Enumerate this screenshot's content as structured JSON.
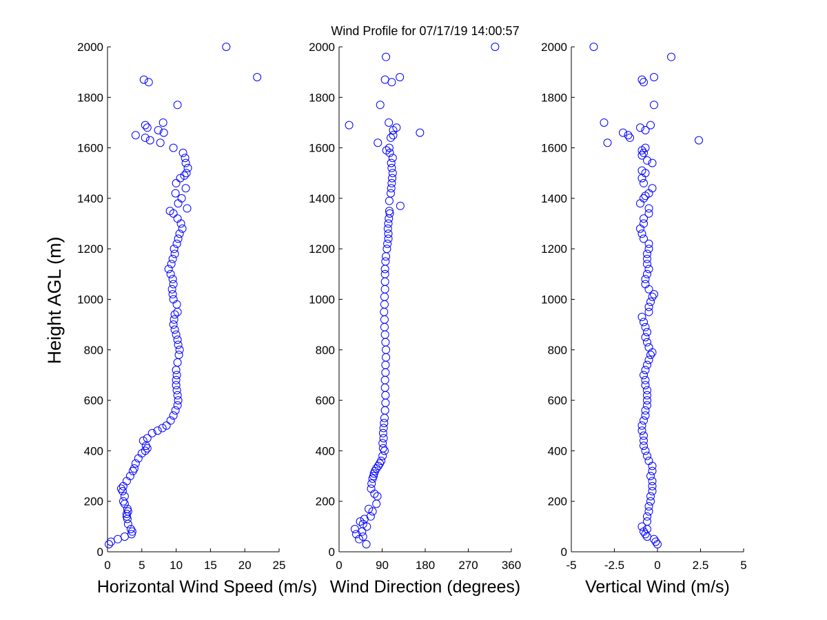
{
  "figure": {
    "title": "Wind Profile for  07/17/19 14:00:57",
    "ylabel": "Height AGL (m)",
    "marker_color": "#0000ff"
  },
  "chart_data": [
    {
      "type": "scatter",
      "xlabel": "Horizontal Wind Speed (m/s)",
      "ylabel": "Height AGL (m)",
      "xlim": [
        0,
        25
      ],
      "ylim": [
        0,
        2000
      ],
      "xticks": [
        0,
        5,
        10,
        15,
        20,
        25
      ],
      "xtick_labels": [
        "0",
        "5",
        "10",
        "15",
        "20",
        "25"
      ],
      "yticks": [
        0,
        200,
        400,
        600,
        800,
        1000,
        1200,
        1400,
        1600,
        1800,
        2000
      ],
      "ytick_labels": [
        "0",
        "200",
        "400",
        "600",
        "800",
        "1000",
        "1200",
        "1400",
        "1600",
        "1800",
        "2000"
      ],
      "grid": false,
      "points": [
        [
          0.2,
          30
        ],
        [
          0.5,
          40
        ],
        [
          1.5,
          50
        ],
        [
          2.5,
          60
        ],
        [
          3.5,
          70
        ],
        [
          3.6,
          80
        ],
        [
          3.4,
          90
        ],
        [
          3.0,
          110
        ],
        [
          2.9,
          130
        ],
        [
          2.8,
          140
        ],
        [
          2.8,
          150
        ],
        [
          3.0,
          160
        ],
        [
          2.9,
          170
        ],
        [
          2.5,
          190
        ],
        [
          2.3,
          200
        ],
        [
          2.5,
          220
        ],
        [
          2.2,
          240
        ],
        [
          2.0,
          250
        ],
        [
          2.3,
          260
        ],
        [
          2.8,
          280
        ],
        [
          3.3,
          300
        ],
        [
          3.7,
          320
        ],
        [
          3.9,
          330
        ],
        [
          4.1,
          350
        ],
        [
          4.5,
          370
        ],
        [
          5.0,
          390
        ],
        [
          5.5,
          400
        ],
        [
          5.8,
          410
        ],
        [
          5.6,
          420
        ],
        [
          5.2,
          440
        ],
        [
          5.8,
          450
        ],
        [
          6.5,
          470
        ],
        [
          7.3,
          480
        ],
        [
          8.0,
          490
        ],
        [
          8.6,
          500
        ],
        [
          9.2,
          520
        ],
        [
          9.6,
          540
        ],
        [
          9.9,
          560
        ],
        [
          10.2,
          580
        ],
        [
          10.3,
          600
        ],
        [
          10.2,
          620
        ],
        [
          10.1,
          640
        ],
        [
          10.0,
          660
        ],
        [
          10.0,
          680
        ],
        [
          10.1,
          700
        ],
        [
          10.0,
          720
        ],
        [
          10.2,
          750
        ],
        [
          10.4,
          780
        ],
        [
          10.5,
          800
        ],
        [
          10.3,
          820
        ],
        [
          10.2,
          840
        ],
        [
          10.0,
          860
        ],
        [
          9.8,
          880
        ],
        [
          9.6,
          900
        ],
        [
          9.7,
          920
        ],
        [
          9.8,
          940
        ],
        [
          10.2,
          950
        ],
        [
          10.1,
          980
        ],
        [
          9.6,
          1000
        ],
        [
          9.5,
          1020
        ],
        [
          9.4,
          1040
        ],
        [
          9.6,
          1060
        ],
        [
          9.5,
          1080
        ],
        [
          9.2,
          1100
        ],
        [
          8.9,
          1120
        ],
        [
          9.3,
          1140
        ],
        [
          9.5,
          1160
        ],
        [
          9.8,
          1180
        ],
        [
          9.7,
          1200
        ],
        [
          10.1,
          1220
        ],
        [
          10.3,
          1240
        ],
        [
          10.5,
          1260
        ],
        [
          10.9,
          1280
        ],
        [
          10.7,
          1300
        ],
        [
          10.2,
          1320
        ],
        [
          9.6,
          1340
        ],
        [
          9.1,
          1350
        ],
        [
          11.6,
          1360
        ],
        [
          10.3,
          1380
        ],
        [
          10.8,
          1400
        ],
        [
          9.9,
          1420
        ],
        [
          11.4,
          1440
        ],
        [
          10.0,
          1460
        ],
        [
          10.6,
          1480
        ],
        [
          11.2,
          1490
        ],
        [
          11.5,
          1500
        ],
        [
          11.7,
          1520
        ],
        [
          11.4,
          1540
        ],
        [
          11.3,
          1560
        ],
        [
          11.0,
          1580
        ],
        [
          9.6,
          1600
        ],
        [
          7.7,
          1620
        ],
        [
          6.2,
          1630
        ],
        [
          5.5,
          1640
        ],
        [
          4.1,
          1650
        ],
        [
          8.2,
          1660
        ],
        [
          7.4,
          1670
        ],
        [
          5.8,
          1680
        ],
        [
          5.5,
          1690
        ],
        [
          8.1,
          1700
        ],
        [
          10.2,
          1770
        ],
        [
          6.0,
          1860
        ],
        [
          5.3,
          1870
        ],
        [
          21.8,
          1880
        ],
        [
          17.3,
          2000
        ]
      ]
    },
    {
      "type": "scatter",
      "xlabel": "Wind Direction (degrees)",
      "ylabel": "",
      "xlim": [
        0,
        360
      ],
      "ylim": [
        0,
        2000
      ],
      "xticks": [
        0,
        90,
        180,
        270,
        360
      ],
      "xtick_labels": [
        "0",
        "90",
        "180",
        "270",
        "360"
      ],
      "yticks": [
        0,
        200,
        400,
        600,
        800,
        1000,
        1200,
        1400,
        1600,
        1800,
        2000
      ],
      "ytick_labels": [
        "0",
        "200",
        "400",
        "600",
        "800",
        "1000",
        "1200",
        "1400",
        "1600",
        "1800",
        "2000"
      ],
      "grid": false,
      "points": [
        [
          57,
          30
        ],
        [
          42,
          50
        ],
        [
          50,
          60
        ],
        [
          36,
          70
        ],
        [
          48,
          80
        ],
        [
          33,
          90
        ],
        [
          58,
          100
        ],
        [
          50,
          110
        ],
        [
          44,
          120
        ],
        [
          53,
          130
        ],
        [
          66,
          140
        ],
        [
          70,
          160
        ],
        [
          62,
          170
        ],
        [
          78,
          190
        ],
        [
          80,
          220
        ],
        [
          74,
          230
        ],
        [
          67,
          250
        ],
        [
          68,
          270
        ],
        [
          70,
          290
        ],
        [
          72,
          300
        ],
        [
          73,
          310
        ],
        [
          75,
          320
        ],
        [
          78,
          330
        ],
        [
          82,
          340
        ],
        [
          85,
          350
        ],
        [
          88,
          360
        ],
        [
          91,
          380
        ],
        [
          95,
          400
        ],
        [
          92,
          410
        ],
        [
          91,
          430
        ],
        [
          93,
          450
        ],
        [
          92,
          470
        ],
        [
          93,
          490
        ],
        [
          94,
          510
        ],
        [
          95,
          530
        ],
        [
          96,
          560
        ],
        [
          97,
          590
        ],
        [
          97,
          620
        ],
        [
          96,
          650
        ],
        [
          96,
          680
        ],
        [
          97,
          710
        ],
        [
          97,
          740
        ],
        [
          98,
          770
        ],
        [
          98,
          800
        ],
        [
          97,
          830
        ],
        [
          96,
          860
        ],
        [
          95,
          890
        ],
        [
          95,
          920
        ],
        [
          94,
          950
        ],
        [
          95,
          980
        ],
        [
          95,
          1010
        ],
        [
          96,
          1040
        ],
        [
          96,
          1070
        ],
        [
          96,
          1100
        ],
        [
          96,
          1120
        ],
        [
          97,
          1150
        ],
        [
          98,
          1170
        ],
        [
          100,
          1200
        ],
        [
          101,
          1220
        ],
        [
          103,
          1240
        ],
        [
          103,
          1260
        ],
        [
          102,
          1280
        ],
        [
          103,
          1300
        ],
        [
          104,
          1320
        ],
        [
          106,
          1340
        ],
        [
          105,
          1350
        ],
        [
          128,
          1370
        ],
        [
          105,
          1390
        ],
        [
          108,
          1420
        ],
        [
          109,
          1440
        ],
        [
          110,
          1460
        ],
        [
          111,
          1480
        ],
        [
          112,
          1500
        ],
        [
          110,
          1520
        ],
        [
          109,
          1540
        ],
        [
          112,
          1560
        ],
        [
          106,
          1580
        ],
        [
          99,
          1590
        ],
        [
          105,
          1600
        ],
        [
          81,
          1620
        ],
        [
          108,
          1640
        ],
        [
          113,
          1650
        ],
        [
          169,
          1660
        ],
        [
          113,
          1670
        ],
        [
          120,
          1680
        ],
        [
          21,
          1690
        ],
        [
          104,
          1700
        ],
        [
          86,
          1770
        ],
        [
          110,
          1860
        ],
        [
          96,
          1870
        ],
        [
          127,
          1880
        ],
        [
          98,
          1960
        ],
        [
          326,
          2000
        ]
      ]
    },
    {
      "type": "scatter",
      "xlabel": "Vertical Wind (m/s)",
      "ylabel": "",
      "xlim": [
        -5,
        5
      ],
      "ylim": [
        0,
        2000
      ],
      "xticks": [
        -5,
        -2.5,
        0,
        2.5,
        5
      ],
      "xtick_labels": [
        "-5",
        "-2.5",
        "0",
        "2.5",
        "5"
      ],
      "yticks": [
        0,
        200,
        400,
        600,
        800,
        1000,
        1200,
        1400,
        1600,
        1800,
        2000
      ],
      "ytick_labels": [
        "0",
        "200",
        "400",
        "600",
        "800",
        "1000",
        "1200",
        "1400",
        "1600",
        "1800",
        "2000"
      ],
      "grid": false,
      "points": [
        [
          0.0,
          30
        ],
        [
          -0.1,
          40
        ],
        [
          -0.2,
          50
        ],
        [
          -0.6,
          60
        ],
        [
          -0.7,
          70
        ],
        [
          -0.8,
          80
        ],
        [
          -0.6,
          90
        ],
        [
          -0.9,
          100
        ],
        [
          -0.6,
          120
        ],
        [
          -0.6,
          140
        ],
        [
          -0.5,
          160
        ],
        [
          -0.5,
          180
        ],
        [
          -0.4,
          200
        ],
        [
          -0.4,
          220
        ],
        [
          -0.3,
          240
        ],
        [
          -0.3,
          260
        ],
        [
          -0.3,
          280
        ],
        [
          -0.4,
          300
        ],
        [
          -0.3,
          320
        ],
        [
          -0.3,
          340
        ],
        [
          -0.5,
          360
        ],
        [
          -0.6,
          380
        ],
        [
          -0.7,
          400
        ],
        [
          -0.8,
          420
        ],
        [
          -0.8,
          440
        ],
        [
          -0.8,
          460
        ],
        [
          -0.9,
          480
        ],
        [
          -0.9,
          500
        ],
        [
          -0.8,
          520
        ],
        [
          -0.7,
          540
        ],
        [
          -0.7,
          560
        ],
        [
          -0.6,
          580
        ],
        [
          -0.6,
          600
        ],
        [
          -0.6,
          620
        ],
        [
          -0.6,
          640
        ],
        [
          -0.7,
          660
        ],
        [
          -0.7,
          680
        ],
        [
          -0.8,
          700
        ],
        [
          -0.7,
          720
        ],
        [
          -0.6,
          740
        ],
        [
          -0.5,
          760
        ],
        [
          -0.4,
          780
        ],
        [
          -0.3,
          790
        ],
        [
          -0.5,
          810
        ],
        [
          -0.6,
          830
        ],
        [
          -0.7,
          850
        ],
        [
          -0.6,
          870
        ],
        [
          -0.7,
          890
        ],
        [
          -0.8,
          910
        ],
        [
          -0.9,
          930
        ],
        [
          -0.5,
          950
        ],
        [
          -0.5,
          970
        ],
        [
          -0.4,
          990
        ],
        [
          -0.3,
          1010
        ],
        [
          -0.2,
          1020
        ],
        [
          -0.5,
          1040
        ],
        [
          -0.7,
          1060
        ],
        [
          -0.7,
          1080
        ],
        [
          -0.6,
          1100
        ],
        [
          -0.5,
          1120
        ],
        [
          -0.6,
          1140
        ],
        [
          -0.6,
          1160
        ],
        [
          -0.6,
          1180
        ],
        [
          -0.5,
          1200
        ],
        [
          -0.5,
          1220
        ],
        [
          -0.8,
          1240
        ],
        [
          -0.9,
          1260
        ],
        [
          -1.0,
          1280
        ],
        [
          -0.8,
          1300
        ],
        [
          -0.8,
          1320
        ],
        [
          -0.5,
          1340
        ],
        [
          -0.5,
          1360
        ],
        [
          -1.0,
          1380
        ],
        [
          -0.8,
          1400
        ],
        [
          -0.7,
          1410
        ],
        [
          -0.5,
          1420
        ],
        [
          -0.3,
          1440
        ],
        [
          -0.8,
          1460
        ],
        [
          -0.9,
          1480
        ],
        [
          -0.7,
          1500
        ],
        [
          -0.9,
          1510
        ],
        [
          -0.3,
          1540
        ],
        [
          -0.6,
          1550
        ],
        [
          -0.9,
          1570
        ],
        [
          -0.8,
          1580
        ],
        [
          -0.9,
          1590
        ],
        [
          -0.7,
          1600
        ],
        [
          2.4,
          1630
        ],
        [
          -1.6,
          1640
        ],
        [
          -1.7,
          1650
        ],
        [
          -2.0,
          1660
        ],
        [
          -0.7,
          1670
        ],
        [
          -1.0,
          1680
        ],
        [
          -0.4,
          1690
        ],
        [
          -3.1,
          1700
        ],
        [
          -2.9,
          1620
        ],
        [
          -0.2,
          1770
        ],
        [
          -0.8,
          1860
        ],
        [
          -0.9,
          1870
        ],
        [
          -0.2,
          1880
        ],
        [
          0.8,
          1960
        ],
        [
          -3.7,
          2000
        ]
      ]
    }
  ]
}
